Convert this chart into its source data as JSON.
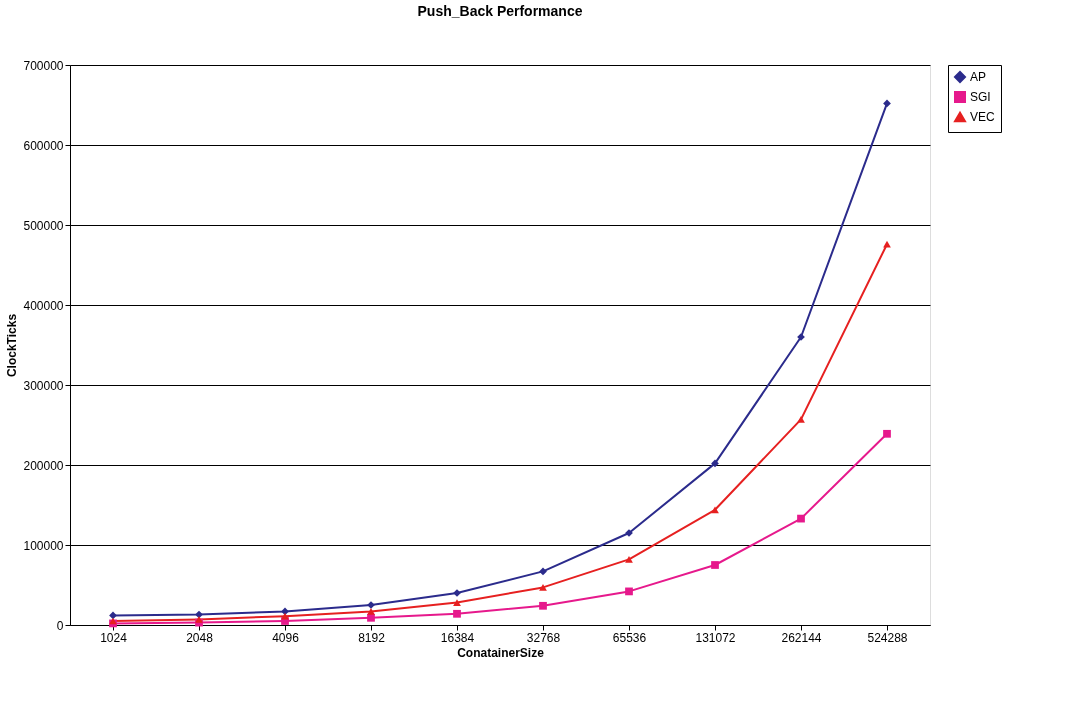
{
  "chart_data": {
    "type": "line",
    "title": "Push_Back Performance",
    "xlabel": "ConatainerSize",
    "ylabel": "ClockTicks",
    "categories": [
      "1024",
      "2048",
      "4096",
      "8192",
      "16384",
      "32768",
      "65536",
      "131072",
      "262144",
      "524288"
    ],
    "series": [
      {
        "name": "AP",
        "color": "#2b2b8c",
        "marker": "diamond",
        "values": [
          12000,
          13000,
          17000,
          25000,
          40000,
          67000,
          115000,
          202000,
          360000,
          652000
        ]
      },
      {
        "name": "SGI",
        "color": "#e6198c",
        "marker": "square",
        "values": [
          2000,
          3000,
          5000,
          9000,
          14000,
          24000,
          42000,
          75000,
          133000,
          239000
        ]
      },
      {
        "name": "VEC",
        "color": "#e62020",
        "marker": "triangle",
        "values": [
          5000,
          7000,
          11000,
          17000,
          28000,
          47000,
          82000,
          144000,
          257000,
          476000
        ]
      }
    ],
    "ylim": [
      0,
      700000
    ],
    "yticks": [
      0,
      100000,
      200000,
      300000,
      400000,
      500000,
      600000,
      700000
    ],
    "grid": "y",
    "legend": "right",
    "line_style": "solid"
  }
}
